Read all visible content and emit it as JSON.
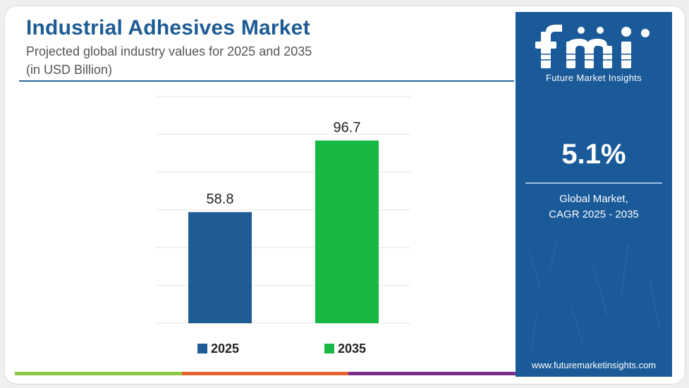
{
  "chart_data": {
    "type": "bar",
    "title": "Industrial Adhesives Market",
    "subtitle": "Projected global industry values for 2025 and 2035",
    "unit": "(in USD Billion)",
    "categories": [
      "2025",
      "2035"
    ],
    "values": [
      58.8,
      96.7
    ],
    "value_labels": [
      "58.8",
      "96.7"
    ],
    "colors": [
      "#1f5b94",
      "#18b845"
    ],
    "ylim": [
      0,
      120
    ],
    "grid": true,
    "legend": {
      "placement": "bottom",
      "entries": [
        "2025",
        "2035"
      ]
    }
  },
  "side_panel": {
    "brand_logo": "fmi",
    "brand_name": "Future Market Insights",
    "cagr_value": "5.1%",
    "cagr_line1": "Global Market,",
    "cagr_line2": "CAGR 2025 - 2035",
    "website": "www.futuremarketinsights.com",
    "background": "#1a5a99"
  },
  "accent_strip_colors": [
    "#8dc63f",
    "#e8632b",
    "#7b2d8e"
  ]
}
